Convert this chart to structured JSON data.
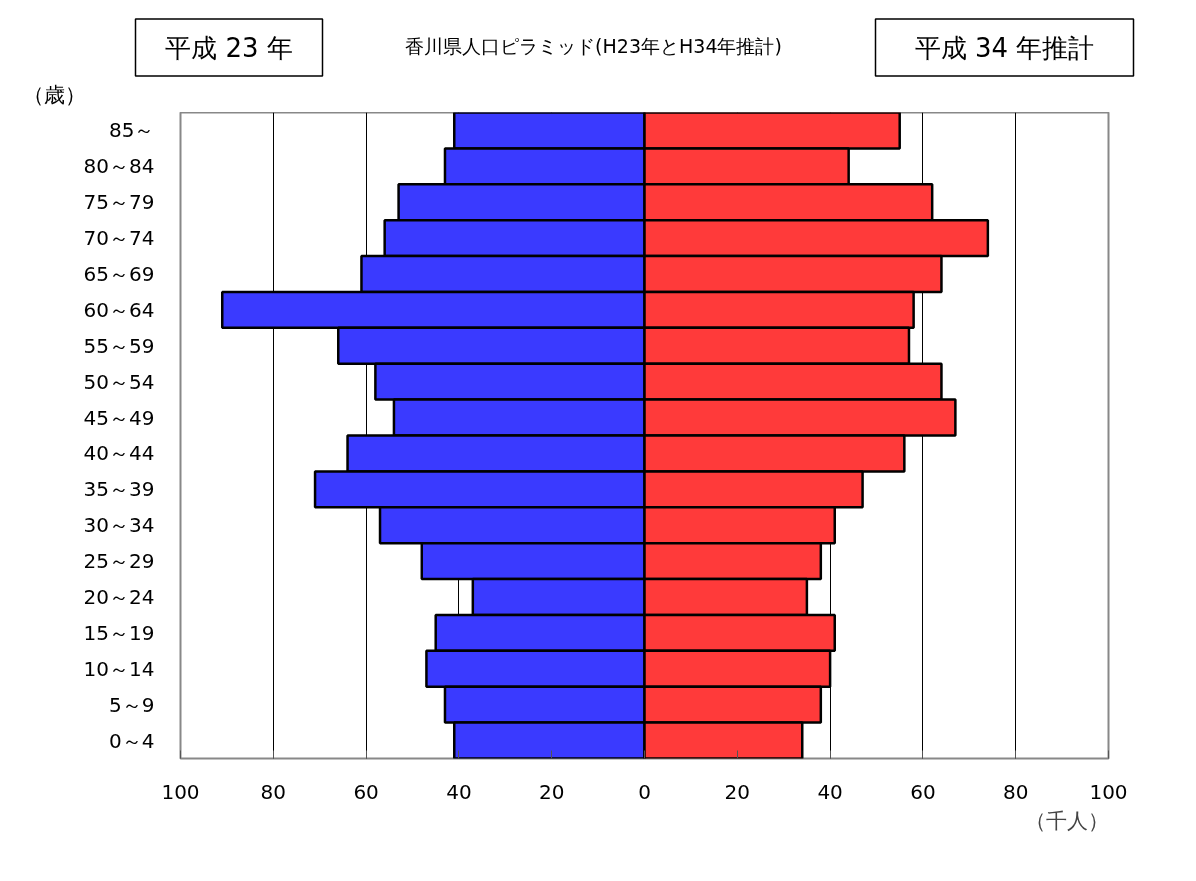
{
  "chart_data": {
    "type": "bar",
    "orientation": "horizontal",
    "stacked": true,
    "title": "香川県人口ピラミッド(H23年とH34年推計)",
    "ylabel": "（歳）",
    "xlabel": "（千人）",
    "categories": [
      "85～",
      "80～84",
      "75～79",
      "70～74",
      "65～69",
      "60～64",
      "55～59",
      "50～54",
      "45～49",
      "40～44",
      "35～39",
      "30～34",
      "25～29",
      "20～24",
      "15～19",
      "10～14",
      "5～9",
      "0～4"
    ],
    "series": [
      {
        "name": "平成 23 年",
        "color": "#3a3aff",
        "values": [
          -41,
          -43,
          -53,
          -56,
          -61,
          -91,
          -66,
          -58,
          -54,
          -64,
          -71,
          -57,
          -48,
          -37,
          -45,
          -47,
          -43,
          -41
        ]
      },
      {
        "name": "平成 34 年推計",
        "color": "#ff3a3a",
        "values": [
          55,
          44,
          62,
          74,
          64,
          58,
          57,
          64,
          67,
          56,
          47,
          41,
          38,
          35,
          41,
          40,
          38,
          34
        ]
      }
    ],
    "xlim": [
      -100,
      100
    ],
    "xticks": [
      {
        "value": -100,
        "label": "100"
      },
      {
        "value": -80,
        "label": "80"
      },
      {
        "value": -60,
        "label": "60"
      },
      {
        "value": -40,
        "label": "40"
      },
      {
        "value": -20,
        "label": "20"
      },
      0,
      20,
      40,
      60,
      80,
      100
    ],
    "grid": "x"
  }
}
